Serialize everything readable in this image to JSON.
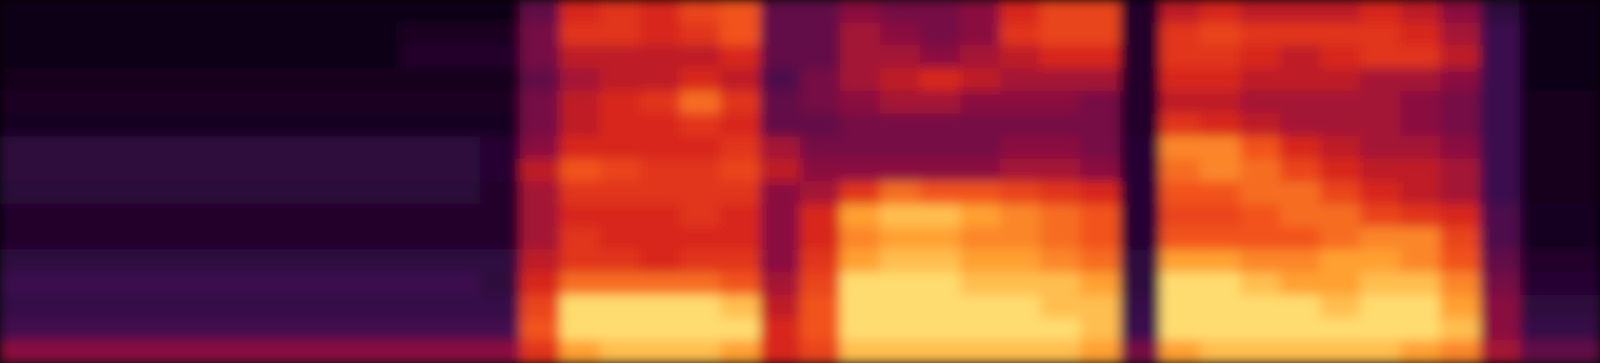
{
  "chart_data": {
    "type": "heatmap",
    "tick_labels": false,
    "zlim": [
      0,
      1
    ],
    "cells": [
      [
        0.03,
        0.03,
        0.03,
        0.03,
        0.03,
        0.03,
        0.03,
        0.03,
        0.03,
        0.03,
        0.03,
        0.03,
        0.03,
        0.3,
        0.55,
        0.6,
        0.55,
        0.65,
        0.7,
        0.3,
        0.3,
        0.4,
        0.35,
        0.35,
        0.4,
        0.55,
        0.65,
        0.65,
        0.1,
        0.5,
        0.55,
        0.5,
        0.5,
        0.5,
        0.55,
        0.5,
        0.4,
        0.15,
        0.03,
        0.03
      ],
      [
        0.04,
        0.04,
        0.04,
        0.04,
        0.04,
        0.04,
        0.04,
        0.04,
        0.04,
        0.04,
        0.08,
        0.08,
        0.08,
        0.35,
        0.6,
        0.6,
        0.55,
        0.6,
        0.7,
        0.3,
        0.3,
        0.45,
        0.4,
        0.35,
        0.4,
        0.6,
        0.65,
        0.65,
        0.1,
        0.6,
        0.65,
        0.6,
        0.6,
        0.6,
        0.6,
        0.55,
        0.45,
        0.2,
        0.04,
        0.04
      ],
      [
        0.04,
        0.04,
        0.04,
        0.04,
        0.04,
        0.04,
        0.04,
        0.04,
        0.04,
        0.04,
        0.1,
        0.1,
        0.1,
        0.35,
        0.5,
        0.5,
        0.5,
        0.5,
        0.55,
        0.3,
        0.3,
        0.45,
        0.45,
        0.4,
        0.45,
        0.5,
        0.55,
        0.55,
        0.1,
        0.6,
        0.6,
        0.55,
        0.5,
        0.55,
        0.6,
        0.6,
        0.5,
        0.2,
        0.04,
        0.04
      ],
      [
        0.05,
        0.05,
        0.05,
        0.05,
        0.05,
        0.05,
        0.05,
        0.05,
        0.05,
        0.05,
        0.05,
        0.05,
        0.05,
        0.3,
        0.45,
        0.5,
        0.5,
        0.55,
        0.5,
        0.25,
        0.35,
        0.45,
        0.5,
        0.55,
        0.5,
        0.45,
        0.45,
        0.45,
        0.1,
        0.55,
        0.55,
        0.5,
        0.5,
        0.5,
        0.45,
        0.45,
        0.4,
        0.2,
        0.04,
        0.04
      ],
      [
        0.08,
        0.08,
        0.08,
        0.08,
        0.08,
        0.08,
        0.08,
        0.08,
        0.08,
        0.08,
        0.08,
        0.08,
        0.08,
        0.35,
        0.5,
        0.55,
        0.6,
        0.75,
        0.6,
        0.3,
        0.35,
        0.4,
        0.45,
        0.45,
        0.4,
        0.4,
        0.4,
        0.35,
        0.1,
        0.5,
        0.5,
        0.45,
        0.45,
        0.45,
        0.45,
        0.4,
        0.35,
        0.2,
        0.05,
        0.05
      ],
      [
        0.07,
        0.07,
        0.07,
        0.07,
        0.07,
        0.07,
        0.07,
        0.07,
        0.07,
        0.07,
        0.07,
        0.07,
        0.07,
        0.35,
        0.5,
        0.55,
        0.55,
        0.6,
        0.55,
        0.3,
        0.3,
        0.35,
        0.35,
        0.35,
        0.35,
        0.35,
        0.35,
        0.35,
        0.1,
        0.6,
        0.55,
        0.5,
        0.45,
        0.45,
        0.45,
        0.4,
        0.35,
        0.2,
        0.05,
        0.05
      ],
      [
        0.15,
        0.15,
        0.15,
        0.15,
        0.15,
        0.15,
        0.15,
        0.15,
        0.15,
        0.15,
        0.15,
        0.15,
        0.12,
        0.4,
        0.55,
        0.55,
        0.55,
        0.55,
        0.6,
        0.45,
        0.35,
        0.35,
        0.35,
        0.35,
        0.35,
        0.4,
        0.4,
        0.35,
        0.12,
        0.8,
        0.8,
        0.7,
        0.55,
        0.5,
        0.45,
        0.45,
        0.4,
        0.2,
        0.05,
        0.05
      ],
      [
        0.15,
        0.15,
        0.15,
        0.15,
        0.15,
        0.15,
        0.15,
        0.15,
        0.15,
        0.15,
        0.15,
        0.15,
        0.12,
        0.5,
        0.7,
        0.65,
        0.6,
        0.6,
        0.65,
        0.5,
        0.4,
        0.4,
        0.4,
        0.4,
        0.4,
        0.45,
        0.45,
        0.4,
        0.12,
        0.75,
        0.8,
        0.75,
        0.65,
        0.55,
        0.5,
        0.5,
        0.45,
        0.2,
        0.06,
        0.06
      ],
      [
        0.14,
        0.14,
        0.14,
        0.14,
        0.14,
        0.14,
        0.14,
        0.14,
        0.14,
        0.14,
        0.14,
        0.14,
        0.1,
        0.45,
        0.6,
        0.6,
        0.6,
        0.6,
        0.6,
        0.4,
        0.45,
        0.6,
        0.75,
        0.7,
        0.7,
        0.65,
        0.6,
        0.55,
        0.12,
        0.7,
        0.7,
        0.75,
        0.75,
        0.65,
        0.55,
        0.5,
        0.45,
        0.2,
        0.06,
        0.06
      ],
      [
        0.1,
        0.1,
        0.1,
        0.1,
        0.1,
        0.1,
        0.1,
        0.1,
        0.1,
        0.1,
        0.1,
        0.1,
        0.1,
        0.45,
        0.55,
        0.55,
        0.55,
        0.6,
        0.55,
        0.4,
        0.55,
        0.85,
        0.9,
        0.9,
        0.85,
        0.8,
        0.75,
        0.7,
        0.12,
        0.65,
        0.65,
        0.7,
        0.75,
        0.75,
        0.65,
        0.6,
        0.55,
        0.25,
        0.07,
        0.07
      ],
      [
        0.1,
        0.1,
        0.1,
        0.1,
        0.1,
        0.1,
        0.1,
        0.1,
        0.1,
        0.1,
        0.1,
        0.1,
        0.1,
        0.45,
        0.6,
        0.55,
        0.55,
        0.55,
        0.55,
        0.4,
        0.55,
        0.8,
        0.85,
        0.85,
        0.8,
        0.8,
        0.75,
        0.7,
        0.12,
        0.7,
        0.7,
        0.7,
        0.7,
        0.75,
        0.8,
        0.8,
        0.65,
        0.25,
        0.07,
        0.07
      ],
      [
        0.16,
        0.16,
        0.16,
        0.16,
        0.16,
        0.16,
        0.16,
        0.16,
        0.16,
        0.16,
        0.16,
        0.16,
        0.16,
        0.5,
        0.6,
        0.6,
        0.55,
        0.6,
        0.6,
        0.4,
        0.6,
        0.85,
        0.9,
        0.9,
        0.85,
        0.85,
        0.8,
        0.75,
        0.15,
        0.85,
        0.85,
        0.8,
        0.8,
        0.85,
        0.85,
        0.8,
        0.7,
        0.3,
        0.1,
        0.1
      ],
      [
        0.2,
        0.2,
        0.2,
        0.2,
        0.2,
        0.2,
        0.2,
        0.2,
        0.2,
        0.2,
        0.2,
        0.2,
        0.15,
        0.55,
        0.75,
        0.75,
        0.75,
        0.75,
        0.7,
        0.45,
        0.65,
        0.95,
        0.95,
        0.95,
        0.9,
        0.9,
        0.9,
        0.85,
        0.15,
        0.95,
        0.95,
        0.9,
        0.85,
        0.85,
        0.9,
        0.9,
        0.8,
        0.35,
        0.12,
        0.12
      ],
      [
        0.18,
        0.18,
        0.18,
        0.18,
        0.18,
        0.18,
        0.18,
        0.18,
        0.18,
        0.18,
        0.18,
        0.18,
        0.18,
        0.65,
        0.95,
        0.95,
        0.95,
        0.95,
        0.9,
        0.5,
        0.7,
        0.95,
        0.95,
        0.95,
        0.95,
        0.95,
        0.9,
        0.9,
        0.18,
        0.95,
        0.95,
        0.95,
        0.95,
        0.9,
        0.95,
        0.95,
        0.85,
        0.4,
        0.15,
        0.15
      ],
      [
        0.22,
        0.22,
        0.22,
        0.22,
        0.22,
        0.22,
        0.22,
        0.22,
        0.22,
        0.22,
        0.22,
        0.22,
        0.22,
        0.7,
        0.95,
        0.95,
        0.95,
        0.95,
        0.95,
        0.55,
        0.7,
        0.95,
        0.95,
        0.95,
        0.95,
        0.95,
        0.95,
        0.9,
        0.2,
        0.95,
        0.95,
        0.95,
        0.95,
        0.95,
        0.95,
        0.95,
        0.9,
        0.4,
        0.18,
        0.18
      ],
      [
        0.4,
        0.4,
        0.4,
        0.4,
        0.4,
        0.4,
        0.4,
        0.4,
        0.4,
        0.4,
        0.4,
        0.4,
        0.4,
        0.6,
        0.85,
        0.9,
        0.9,
        0.9,
        0.85,
        0.55,
        0.65,
        0.9,
        0.9,
        0.9,
        0.9,
        0.9,
        0.9,
        0.85,
        0.35,
        0.85,
        0.9,
        0.9,
        0.9,
        0.9,
        0.9,
        0.85,
        0.8,
        0.45,
        0.3,
        0.3
      ]
    ]
  }
}
